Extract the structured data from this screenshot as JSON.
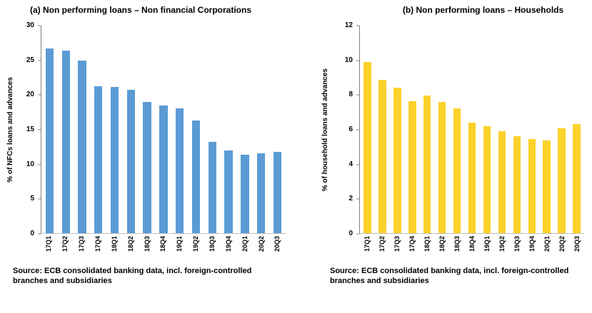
{
  "styles": {
    "background": "#ffffff",
    "axis_color": "#808080",
    "baseline_color": "#bfbfbf",
    "text_color": "#000000"
  },
  "chart_data": [
    {
      "type": "bar",
      "title": "(a) Non performing loans – Non financial Corporations",
      "ylabel": "% of NFCs loans and advances",
      "xlabel": "",
      "ylim": [
        0,
        30
      ],
      "ytick_step": 5,
      "grid": false,
      "legend": false,
      "bar_color": "#5B9BD5",
      "categories": [
        "17Q1",
        "17Q2",
        "17Q3",
        "17Q4",
        "18Q1",
        "18Q2",
        "18Q3",
        "18Q4",
        "19Q1",
        "19Q2",
        "19Q3",
        "19Q4",
        "20Q1",
        "20Q2",
        "20Q3"
      ],
      "values": [
        26.7,
        26.4,
        25.0,
        21.2,
        21.1,
        20.7,
        19.0,
        18.5,
        18.0,
        16.3,
        13.2,
        12.0,
        11.3,
        11.5,
        11.8
      ],
      "source": {
        "line1": "Source: ECB consolidated banking data, incl. foreign-controlled",
        "line2": "branches and subsidiaries"
      }
    },
    {
      "type": "bar",
      "title": "(b) Non performing loans – Households",
      "ylabel": "% of household loans and advances",
      "xlabel": "",
      "ylim": [
        0,
        12
      ],
      "ytick_step": 2,
      "grid": false,
      "legend": false,
      "bar_color": "#FCD12A",
      "categories": [
        "17Q1",
        "17Q2",
        "17Q3",
        "17Q4",
        "18Q1",
        "18Q2",
        "18Q3",
        "18Q4",
        "19Q1",
        "19Q2",
        "19Q3",
        "19Q4",
        "20Q1",
        "20Q2",
        "20Q3"
      ],
      "values": [
        9.9,
        8.85,
        8.4,
        7.65,
        7.95,
        7.6,
        7.2,
        6.4,
        6.2,
        5.9,
        5.6,
        5.45,
        5.35,
        6.05,
        6.3
      ],
      "source": {
        "line1": "Source:  ECB consolidated banking data, incl. foreign-controlled",
        "line2": "branches and subsidiaries"
      }
    }
  ]
}
